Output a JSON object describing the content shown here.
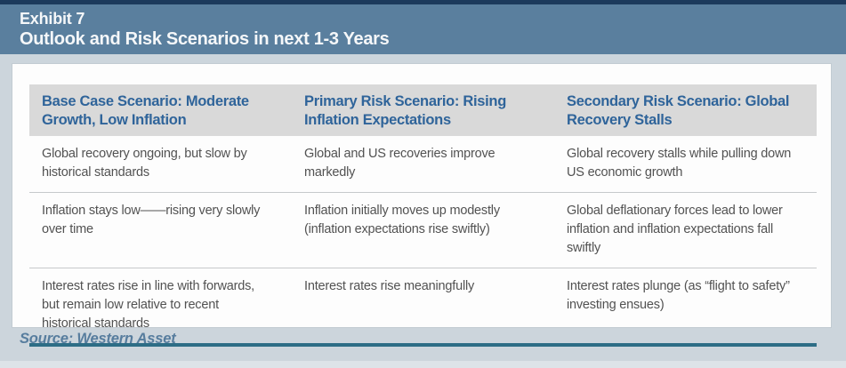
{
  "header": {
    "exhibit_label": "Exhibit 7",
    "title": "Outlook and Risk Scenarios in next 1-3 Years"
  },
  "table": {
    "headers": [
      "Base Case Scenario: Moderate Growth, Low Inflation",
      "Primary Risk Scenario: Rising Inflation Expectations",
      "Secondary Risk Scenario: Global Recovery Stalls"
    ],
    "rows": [
      [
        "Global recovery ongoing, but slow by historical standards",
        "Global and US recoveries improve markedly",
        "Global recovery stalls while pulling down US economic growth"
      ],
      [
        "Inflation stays low——rising very slowly over time",
        "Inflation initially moves up modestly (inflation expectations rise swiftly)",
        "Global deflationary forces lead to lower inflation and inflation expectations fall swiftly"
      ],
      [
        "Interest rates rise in line with forwards, but remain low relative to recent historical standards",
        "Interest rates rise meaningfully",
        "Interest rates plunge (as “flight to safety” investing ensues)"
      ]
    ]
  },
  "footer": {
    "source": "Source: Western Asset"
  },
  "colors": {
    "header_bar": "#5a7f9e",
    "header_top_border": "#1c3a5c",
    "page_background": "#ccd5dc",
    "card_background": "#fdfdfd",
    "column_header_background": "#d9d9d9",
    "column_header_text": "#2f649a",
    "body_text": "#525252",
    "row_divider": "#c6c9cb",
    "table_bottom_rule": "#2d6d86",
    "source_text": "#577d9e"
  }
}
